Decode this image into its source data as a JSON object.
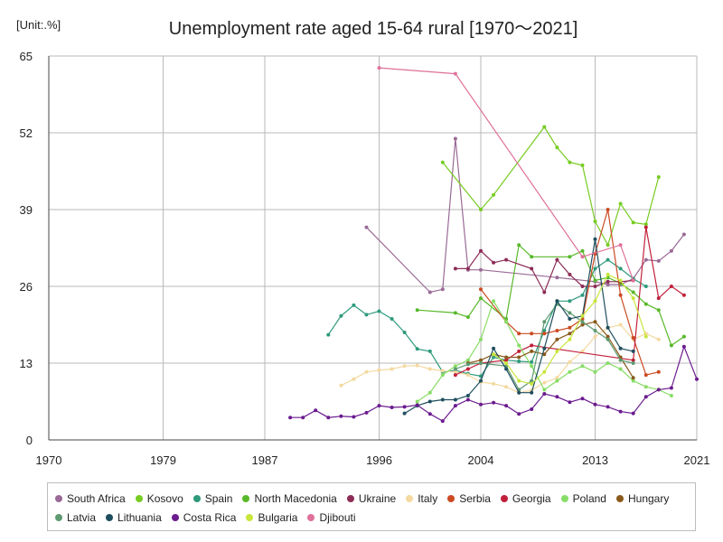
{
  "chart_data": {
    "type": "line",
    "title": "Unemployment rate aged 15-64 rural [1970～2021]",
    "unit_label": "[Unit:.%]",
    "xlim": [
      1970,
      2021
    ],
    "ylim": [
      0,
      65
    ],
    "x_ticks": [
      1970,
      1979,
      1987,
      1996,
      2004,
      2013,
      2021
    ],
    "y_ticks": [
      0,
      13,
      26,
      39,
      52,
      65
    ],
    "grid": true,
    "legend_position": "bottom",
    "series": [
      {
        "name": "South Africa",
        "color": "#9a6a96",
        "points": [
          [
            1995,
            36.0
          ],
          [
            2000,
            25.0
          ],
          [
            2001,
            25.5
          ],
          [
            2002,
            51.0
          ],
          [
            2003,
            28.8
          ],
          [
            2004,
            28.8
          ],
          [
            2010,
            27.5
          ],
          [
            2013,
            26.8
          ],
          [
            2014,
            26.3
          ],
          [
            2015,
            26.3
          ],
          [
            2016,
            27.3
          ],
          [
            2017,
            30.5
          ],
          [
            2018,
            30.3
          ],
          [
            2019,
            32.0
          ],
          [
            2020,
            34.8
          ]
        ]
      },
      {
        "name": "Kosovo",
        "color": "#77cc22",
        "points": [
          [
            2001,
            47.0
          ],
          [
            2004,
            39.0
          ],
          [
            2005,
            41.5
          ],
          [
            2009,
            53.0
          ],
          [
            2010,
            49.5
          ],
          [
            2011,
            47.0
          ],
          [
            2012,
            46.5
          ],
          [
            2013,
            37.0
          ],
          [
            2014,
            33.0
          ],
          [
            2015,
            40.0
          ],
          [
            2016,
            36.8
          ],
          [
            2017,
            36.5
          ],
          [
            2018,
            44.5
          ]
        ]
      },
      {
        "name": "Spain",
        "color": "#2e9a7c",
        "points": [
          [
            1992,
            17.8
          ],
          [
            1993,
            21.0
          ],
          [
            1994,
            22.8
          ],
          [
            1995,
            21.2
          ],
          [
            1996,
            21.8
          ],
          [
            1997,
            20.5
          ],
          [
            1998,
            18.2
          ],
          [
            1999,
            15.4
          ],
          [
            2000,
            15.0
          ],
          [
            2001,
            11.5
          ],
          [
            2002,
            11.8
          ],
          [
            2003,
            11.2
          ],
          [
            2004,
            10.8
          ],
          [
            2005,
            14.0
          ],
          [
            2006,
            13.5
          ],
          [
            2007,
            13.3
          ],
          [
            2008,
            13.2
          ],
          [
            2009,
            18.5
          ],
          [
            2010,
            23.5
          ],
          [
            2011,
            23.5
          ],
          [
            2012,
            24.5
          ],
          [
            2013,
            29.0
          ],
          [
            2014,
            30.5
          ],
          [
            2015,
            29.0
          ],
          [
            2016,
            27.3
          ],
          [
            2017,
            26.0
          ]
        ]
      },
      {
        "name": "North Macedonia",
        "color": "#58b82a",
        "points": [
          [
            1999,
            22.0
          ],
          [
            2002,
            21.5
          ],
          [
            2003,
            20.8
          ],
          [
            2004,
            24.0
          ],
          [
            2006,
            20.5
          ],
          [
            2007,
            33.0
          ],
          [
            2008,
            31.0
          ],
          [
            2011,
            31.0
          ],
          [
            2012,
            32.0
          ],
          [
            2013,
            27.0
          ],
          [
            2014,
            27.5
          ],
          [
            2015,
            26.5
          ],
          [
            2016,
            25.0
          ],
          [
            2017,
            23.0
          ],
          [
            2018,
            22.0
          ],
          [
            2019,
            16.0
          ],
          [
            2020,
            17.5
          ]
        ]
      },
      {
        "name": "Ukraine",
        "color": "#8c2c56",
        "points": [
          [
            2002,
            29.0
          ],
          [
            2003,
            29.0
          ],
          [
            2004,
            32.0
          ],
          [
            2005,
            30.0
          ],
          [
            2006,
            30.5
          ],
          [
            2008,
            29.0
          ],
          [
            2009,
            25.0
          ],
          [
            2010,
            30.5
          ],
          [
            2011,
            28.0
          ],
          [
            2012,
            26.0
          ],
          [
            2013,
            26.0
          ],
          [
            2014,
            26.8
          ],
          [
            2015,
            26.8
          ],
          [
            2016,
            27.0
          ]
        ]
      },
      {
        "name": "Italy",
        "color": "#f4d9a0",
        "points": [
          [
            1993,
            9.2
          ],
          [
            1994,
            10.3
          ],
          [
            1995,
            11.5
          ],
          [
            1996,
            11.8
          ],
          [
            1997,
            12.0
          ],
          [
            1998,
            12.5
          ],
          [
            1999,
            12.6
          ],
          [
            2000,
            12.0
          ],
          [
            2001,
            11.7
          ],
          [
            2002,
            11.5
          ],
          [
            2003,
            11.0
          ],
          [
            2004,
            9.8
          ],
          [
            2005,
            9.5
          ],
          [
            2006,
            9.0
          ],
          [
            2007,
            8.0
          ],
          [
            2008,
            8.4
          ],
          [
            2009,
            9.7
          ],
          [
            2010,
            10.5
          ],
          [
            2011,
            13.2
          ],
          [
            2012,
            15.0
          ],
          [
            2013,
            17.5
          ],
          [
            2014,
            19.0
          ],
          [
            2015,
            19.5
          ],
          [
            2016,
            17.0
          ],
          [
            2017,
            18.0
          ],
          [
            2018,
            17.0
          ]
        ]
      },
      {
        "name": "Serbia",
        "color": "#cc4a22",
        "points": [
          [
            2004,
            25.5
          ],
          [
            2006,
            20.0
          ],
          [
            2007,
            18.0
          ],
          [
            2008,
            18.0
          ],
          [
            2009,
            18.0
          ],
          [
            2010,
            18.5
          ],
          [
            2011,
            19.0
          ],
          [
            2012,
            20.5
          ],
          [
            2013,
            31.5
          ],
          [
            2014,
            39.0
          ],
          [
            2015,
            24.5
          ],
          [
            2016,
            17.3
          ],
          [
            2017,
            11.0
          ],
          [
            2018,
            11.5
          ]
        ]
      },
      {
        "name": "Georgia",
        "color": "#c2203a",
        "points": [
          [
            2002,
            11.0
          ],
          [
            2003,
            12.0
          ],
          [
            2004,
            13.0
          ],
          [
            2006,
            13.5
          ],
          [
            2007,
            15.0
          ],
          [
            2008,
            16.0
          ],
          [
            2016,
            13.5
          ],
          [
            2017,
            36.0
          ],
          [
            2018,
            24.0
          ],
          [
            2019,
            26.0
          ],
          [
            2020,
            24.5
          ]
        ]
      },
      {
        "name": "Poland",
        "color": "#88dd66",
        "points": [
          [
            1999,
            6.5
          ],
          [
            2000,
            8.0
          ],
          [
            2001,
            11.0
          ],
          [
            2002,
            12.5
          ],
          [
            2003,
            13.5
          ],
          [
            2004,
            17.0
          ],
          [
            2005,
            23.5
          ],
          [
            2006,
            20.0
          ],
          [
            2007,
            16.0
          ],
          [
            2008,
            12.5
          ],
          [
            2009,
            8.5
          ],
          [
            2010,
            10.0
          ],
          [
            2011,
            11.5
          ],
          [
            2012,
            12.5
          ],
          [
            2013,
            11.5
          ],
          [
            2014,
            13.0
          ],
          [
            2015,
            12.0
          ],
          [
            2016,
            10.0
          ],
          [
            2017,
            9.0
          ],
          [
            2018,
            8.5
          ],
          [
            2019,
            7.5
          ]
        ]
      },
      {
        "name": "Hungary",
        "color": "#8a5a1c",
        "points": [
          [
            2003,
            13.0
          ],
          [
            2004,
            13.5
          ],
          [
            2005,
            14.5
          ],
          [
            2006,
            14.0
          ],
          [
            2007,
            14.0
          ],
          [
            2008,
            15.0
          ],
          [
            2009,
            14.5
          ],
          [
            2010,
            17.0
          ],
          [
            2011,
            18.0
          ],
          [
            2012,
            19.5
          ],
          [
            2013,
            20.0
          ],
          [
            2014,
            17.5
          ],
          [
            2015,
            14.0
          ],
          [
            2016,
            10.5
          ]
        ]
      },
      {
        "name": "Latvia",
        "color": "#5e9a70",
        "points": [
          [
            2002,
            12.0
          ],
          [
            2003,
            12.8
          ],
          [
            2004,
            13.0
          ],
          [
            2006,
            12.5
          ],
          [
            2007,
            8.5
          ],
          [
            2008,
            10.0
          ],
          [
            2009,
            20.0
          ],
          [
            2010,
            23.0
          ],
          [
            2011,
            21.5
          ],
          [
            2012,
            20.0
          ],
          [
            2013,
            18.5
          ],
          [
            2014,
            17.0
          ],
          [
            2015,
            13.5
          ],
          [
            2016,
            13.0
          ]
        ]
      },
      {
        "name": "Lithuania",
        "color": "#1e4e5e",
        "points": [
          [
            1998,
            4.5
          ],
          [
            1999,
            5.8
          ],
          [
            2000,
            6.5
          ],
          [
            2001,
            6.8
          ],
          [
            2002,
            6.8
          ],
          [
            2003,
            7.5
          ],
          [
            2004,
            10.0
          ],
          [
            2005,
            15.5
          ],
          [
            2006,
            12.0
          ],
          [
            2007,
            8.0
          ],
          [
            2008,
            8.0
          ],
          [
            2009,
            15.5
          ],
          [
            2010,
            23.5
          ],
          [
            2011,
            20.5
          ],
          [
            2012,
            21.0
          ],
          [
            2013,
            34.0
          ],
          [
            2014,
            19.0
          ],
          [
            2015,
            15.5
          ],
          [
            2016,
            15.0
          ]
        ]
      },
      {
        "name": "Costa Rica",
        "color": "#6b1b8f",
        "points": [
          [
            1989,
            3.8
          ],
          [
            1990,
            3.8
          ],
          [
            1991,
            5.0
          ],
          [
            1992,
            3.8
          ],
          [
            1993,
            4.0
          ],
          [
            1994,
            3.9
          ],
          [
            1995,
            4.6
          ],
          [
            1996,
            5.8
          ],
          [
            1997,
            5.5
          ],
          [
            1998,
            5.6
          ],
          [
            1999,
            5.9
          ],
          [
            2000,
            4.4
          ],
          [
            2001,
            3.2
          ],
          [
            2002,
            5.8
          ],
          [
            2003,
            6.8
          ],
          [
            2004,
            6.0
          ],
          [
            2005,
            6.3
          ],
          [
            2006,
            5.8
          ],
          [
            2007,
            4.4
          ],
          [
            2008,
            5.2
          ],
          [
            2009,
            7.8
          ],
          [
            2010,
            7.3
          ],
          [
            2011,
            6.4
          ],
          [
            2012,
            7.0
          ],
          [
            2013,
            6.0
          ],
          [
            2014,
            5.6
          ],
          [
            2015,
            4.8
          ],
          [
            2016,
            4.5
          ],
          [
            2017,
            7.3
          ],
          [
            2018,
            8.5
          ],
          [
            2019,
            8.8
          ],
          [
            2020,
            15.8
          ],
          [
            2021,
            10.3
          ]
        ]
      },
      {
        "name": "Bulgaria",
        "color": "#c8e63c",
        "points": [
          [
            2005,
            14.5
          ],
          [
            2006,
            13.0
          ],
          [
            2007,
            10.0
          ],
          [
            2008,
            9.5
          ],
          [
            2009,
            11.5
          ],
          [
            2010,
            15.0
          ],
          [
            2011,
            17.0
          ],
          [
            2012,
            21.0
          ],
          [
            2013,
            23.5
          ],
          [
            2014,
            28.0
          ],
          [
            2015,
            27.0
          ],
          [
            2016,
            24.0
          ],
          [
            2017,
            17.5
          ]
        ]
      },
      {
        "name": "Djibouti",
        "color": "#e0709a",
        "points": [
          [
            1996,
            63.0
          ],
          [
            2002,
            62.0
          ],
          [
            2012,
            31.0
          ],
          [
            2015,
            33.0
          ],
          [
            2016,
            27.0
          ]
        ]
      }
    ]
  }
}
